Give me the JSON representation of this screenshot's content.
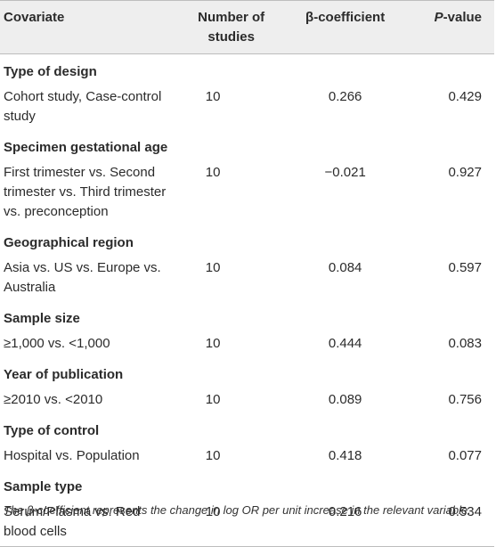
{
  "header": {
    "covariate": "Covariate",
    "studies": "Number of studies",
    "beta": "β-coefficient",
    "p_italic": "P",
    "p_rest": "-value"
  },
  "groups": [
    {
      "title": "Type of design",
      "label": "Cohort study, Case-control study",
      "studies": "10",
      "beta": "0.266",
      "p": "0.429"
    },
    {
      "title": "Specimen gestational age",
      "label": "First trimester vs. Second trimester vs. Third trimester vs. preconception",
      "studies": "10",
      "beta": "−0.021",
      "p": "0.927"
    },
    {
      "title": "Geographical region",
      "label": "Asia vs. US vs. Europe vs. Australia",
      "studies": "10",
      "beta": "0.084",
      "p": "0.597"
    },
    {
      "title": "Sample size",
      "label": "≥1,000 vs. <1,000",
      "studies": "10",
      "beta": "0.444",
      "p": "0.083"
    },
    {
      "title": "Year of publication",
      "label": "≥2010 vs. <2010",
      "studies": "10",
      "beta": "0.089",
      "p": "0.756"
    },
    {
      "title": "Type of control",
      "label": "Hospital vs. Population",
      "studies": "10",
      "beta": "0.418",
      "p": "0.077"
    },
    {
      "title": "Sample type",
      "label": "Serum/Plasma vs. Red blood cells",
      "studies": "10",
      "beta": "0.216",
      "p": "0.534"
    }
  ],
  "footnote": "The β-coefficient represents the change in log OR per unit increase in the relevant variable."
}
